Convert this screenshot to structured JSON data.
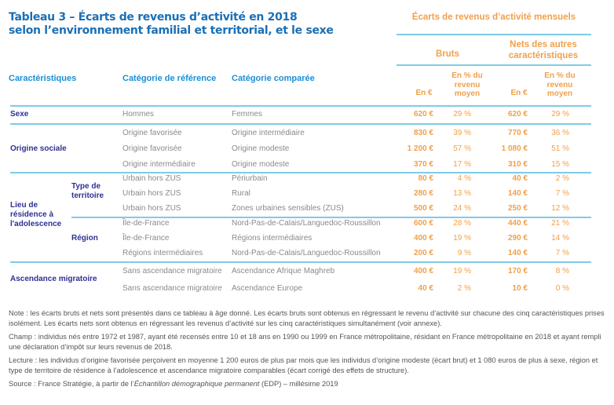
{
  "title": {
    "line1": "Tableau 3 – Écarts de revenus d’activité en 2018",
    "line2": "selon l’environnement familial et territorial, et le sexe"
  },
  "header": {
    "main": "Écarts de revenus d’activité mensuels",
    "bruts": "Bruts",
    "nets_line1": "Nets des autres",
    "nets_line2": "caractéristiques",
    "en_euro": "En €",
    "pct_line1": "En % du",
    "pct_line2": "revenu",
    "pct_line3": "moyen",
    "col_caracteristiques": "Caractéristiques",
    "col_reference": "Catégorie de référence",
    "col_comparee": "Catégorie comparée"
  },
  "groups": {
    "sexe": "Sexe",
    "origine": "Origine sociale",
    "lieu_line1": "Lieu de",
    "lieu_line2": "résidence à",
    "lieu_line3": "l'adolescence",
    "type_line1": "Type de",
    "type_line2": "territoire",
    "region": "Région",
    "ascendance": "Ascendance migratoire"
  },
  "rows": [
    {
      "ref": "Hommes",
      "comp": "Femmes",
      "brut_eur": "620 €",
      "brut_pct": "29 %",
      "net_eur": "620 €",
      "net_pct": "29 %"
    },
    {
      "ref": "Origine favorisée",
      "comp": "Origine intermédiaire",
      "brut_eur": "830 €",
      "brut_pct": "39 %",
      "net_eur": "770 €",
      "net_pct": "36 %"
    },
    {
      "ref": "Origine favorisée",
      "comp": "Origine modeste",
      "brut_eur": "1 200 €",
      "brut_pct": "57 %",
      "net_eur": "1 080 €",
      "net_pct": "51 %"
    },
    {
      "ref": "Origine intermédiaire",
      "comp": "Origine modeste",
      "brut_eur": "370 €",
      "brut_pct": "17 %",
      "net_eur": "310 €",
      "net_pct": "15 %"
    },
    {
      "ref": "Urbain hors ZUS",
      "comp": "Périurbain",
      "brut_eur": "80 €",
      "brut_pct": "4 %",
      "net_eur": "40 €",
      "net_pct": "2 %"
    },
    {
      "ref": "Urbain hors ZUS",
      "comp": "Rural",
      "brut_eur": "280 €",
      "brut_pct": "13 %",
      "net_eur": "140 €",
      "net_pct": "7 %"
    },
    {
      "ref": "Urbain hors ZUS",
      "comp": "Zones urbaines sensibles (ZUS)",
      "brut_eur": "500 €",
      "brut_pct": "24 %",
      "net_eur": "250 €",
      "net_pct": "12 %"
    },
    {
      "ref": "Île-de-France",
      "comp": "Nord-Pas-de-Calais/Languedoc-Roussillon",
      "brut_eur": "600 €",
      "brut_pct": "28 %",
      "net_eur": "440 €",
      "net_pct": "21 %"
    },
    {
      "ref": "Île-de-France",
      "comp": "Régions intermédiaires",
      "brut_eur": "400 €",
      "brut_pct": "19 %",
      "net_eur": "290 €",
      "net_pct": "14 %"
    },
    {
      "ref": "Régions intermédiaires",
      "comp": "Nord-Pas-de-Calais/Languedoc-Roussillon",
      "brut_eur": "200 €",
      "brut_pct": "9 %",
      "net_eur": "140 €",
      "net_pct": "7 %"
    },
    {
      "ref": "Sans ascendance migratoire",
      "comp": "Ascendance Afrique Maghreb",
      "brut_eur": "400 €",
      "brut_pct": "19 %",
      "net_eur": "170 €",
      "net_pct": "8 %"
    },
    {
      "ref": "Sans ascendance migratoire",
      "comp": "Ascendance Europe",
      "brut_eur": "40 €",
      "brut_pct": "2 %",
      "net_eur": "10 €",
      "net_pct": "0 %"
    }
  ],
  "notes": {
    "note": "Note : les écarts bruts et nets sont présentés dans ce tableau à âge donné. Les écarts bruts sont obtenus en régressant le revenu d’activité sur chacune des cinq caractéristiques prises isolément. Les écarts nets sont obtenus en régressant les revenus d’activité sur les cinq caractéristiques simultanément (voir annexe).",
    "champ": "Champ : individus nés entre 1972 et 1987, ayant été recensés entre 10 et 18 ans en 1990 ou 1999 en France métropolitaine, résidant en France métropolitaine en 2018 et ayant rempli une déclaration d’impôt sur leurs revenus de 2018.",
    "lecture": "Lecture : les individus d’origine favorisée perçoivent en moyenne 1 200 euros de plus par mois que les individus d’origine modeste (écart brut) et 1 080 euros de plus à sexe, région et type de territoire de résidence à l’adolescence et ascendance migratoire comparables (écart corrigé des effets de structure).",
    "source_prefix": "Source : France Stratégie, à partir de l’",
    "source_italic": "Échantillon démographique permanent",
    "source_suffix": " (EDP) – millésime 2019"
  }
}
